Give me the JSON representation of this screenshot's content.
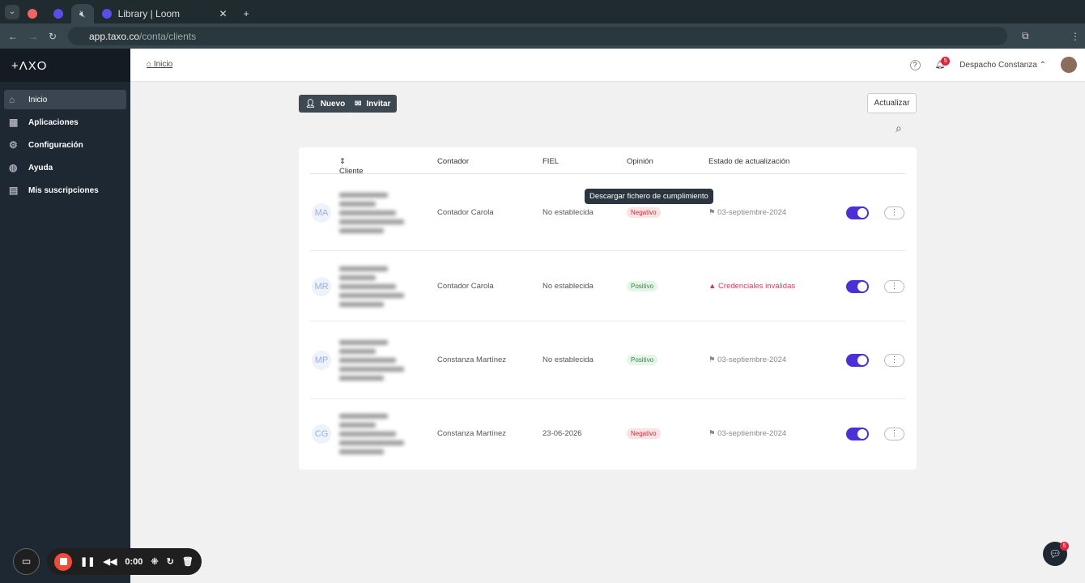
{
  "browser": {
    "tab_title": "Library | Loom",
    "url_host": "app.taxo.co",
    "url_path": "/conta/clients"
  },
  "sidebar": {
    "logo": "+ΛXO",
    "items": [
      {
        "label": "Inicio",
        "icon": "home-icon"
      },
      {
        "label": "Aplicaciones",
        "icon": "apps-icon"
      },
      {
        "label": "Configuración",
        "icon": "gear-icon"
      },
      {
        "label": "Ayuda",
        "icon": "globe-icon"
      },
      {
        "label": "Mis suscripciones",
        "icon": "subscriptions-icon"
      }
    ]
  },
  "header": {
    "breadcrumb": "Inicio",
    "notifications": "5",
    "account": "Despacho Constanza"
  },
  "toolbar": {
    "new": "Nuevo",
    "invite": "Invitar",
    "refresh": "Actualizar"
  },
  "table": {
    "headers": [
      "Cliente",
      "Contador",
      "FIEL",
      "Opinión",
      "Estado de actualización"
    ],
    "rows": [
      {
        "initials": "MA",
        "contador": "Contador Carola",
        "fiel": "No establecida",
        "opinion": "Negativo",
        "status": "03-septiembre-2024",
        "status_type": "date",
        "enabled": true
      },
      {
        "initials": "MR",
        "contador": "Contador Carola",
        "fiel": "No establecida",
        "opinion": "Positivo",
        "status": "Credenciales inválidas",
        "status_type": "error",
        "enabled": true
      },
      {
        "initials": "MP",
        "contador": "Constanza Martínez",
        "fiel": "No establecida",
        "opinion": "Positivo",
        "status": "03-septiembre-2024",
        "status_type": "date",
        "enabled": true
      },
      {
        "initials": "CG",
        "contador": "Constanza Martínez",
        "fiel": "23-06-2026",
        "opinion": "Negativo",
        "status": "03-septiembre-2024",
        "status_type": "date",
        "enabled": true
      }
    ]
  },
  "tooltip": "Descargar fichero de cumplimiento",
  "loom": {
    "timer": "0:00"
  },
  "chat": {
    "badge": "5"
  }
}
